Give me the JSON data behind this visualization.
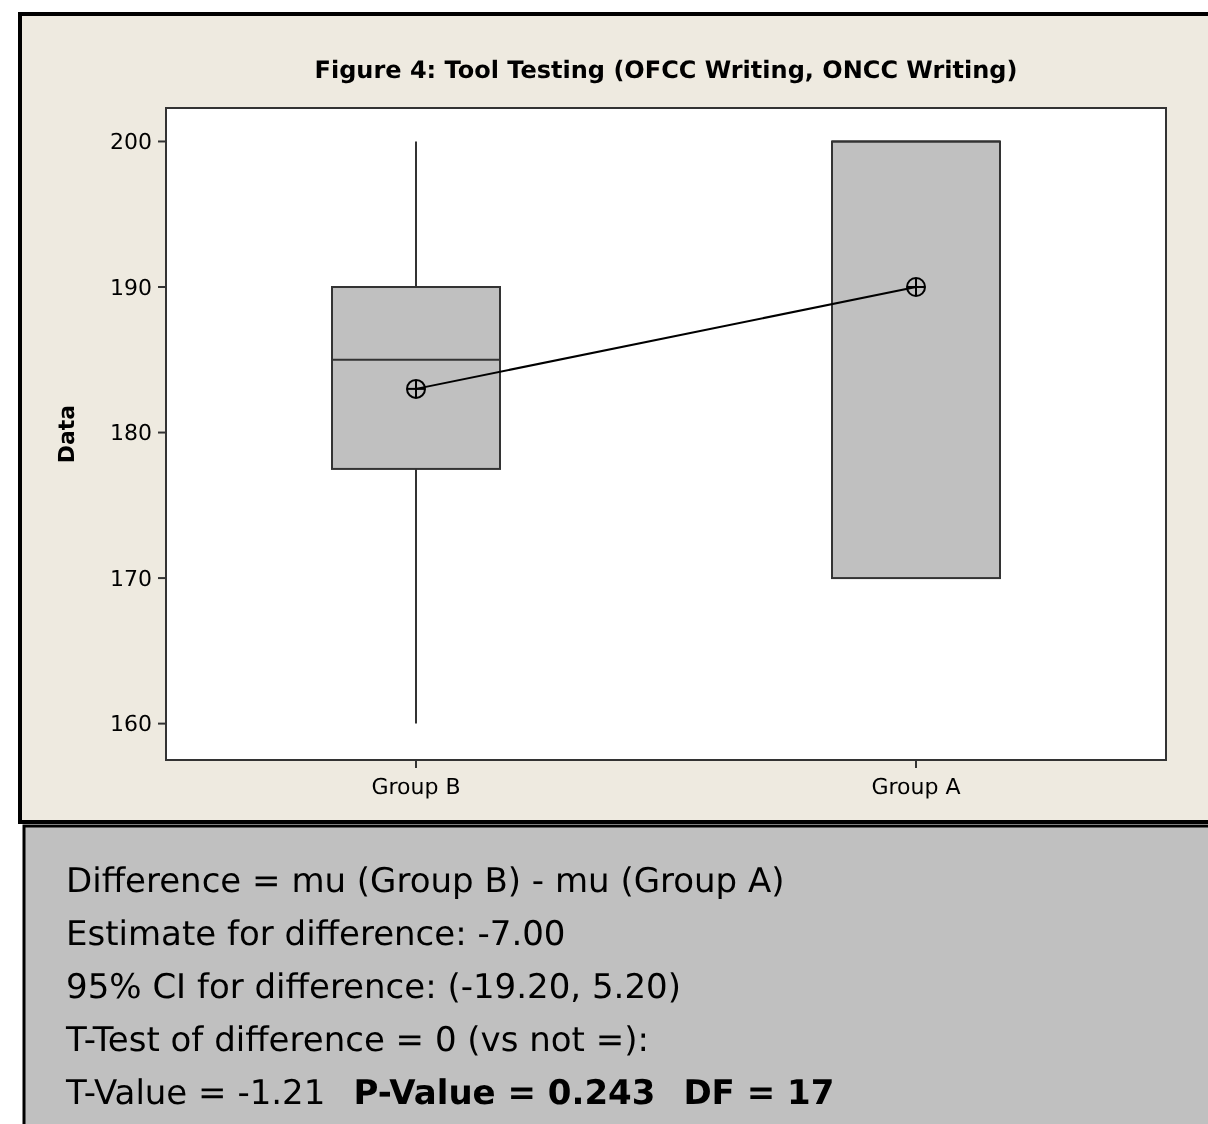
{
  "chart_data": {
    "type": "box",
    "title": "Figure 4: Tool Testing (OFCC Writing, ONCC Writing)",
    "ylabel": "Data",
    "categories": [
      "Group B",
      "Group A"
    ],
    "color": "#c0c0c0",
    "boxes": [
      {
        "low": 160,
        "q1": 177.5,
        "median": 185,
        "q3": 190,
        "high": 200
      },
      {
        "low": 170,
        "q1": 170,
        "median": 200,
        "q3": 200,
        "high": 200
      }
    ],
    "series": [
      {
        "type": "line",
        "values": [
          183,
          190
        ],
        "color": "#000000",
        "marker": "circle"
      }
    ],
    "ylim": [
      157.5,
      202.3
    ],
    "yticks": [
      160,
      170,
      180,
      190,
      200
    ],
    "grid": false,
    "annotations": [
      "Difference = mu (Group B) - mu (Group A)",
      "Estimate for difference:  -7.00",
      "95% CI for difference:  (-19.20, 5.20)",
      "T-Test of difference = 0 (vs not =):",
      "T-Value = -1.21",
      "P-Value = 0.243",
      "DF = 17"
    ]
  }
}
